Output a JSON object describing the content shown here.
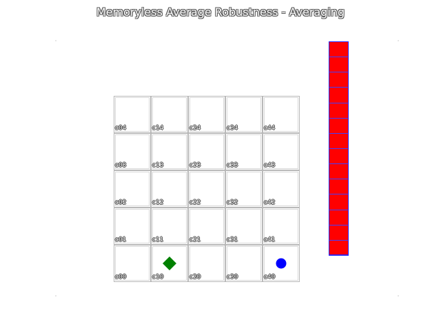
{
  "title": "Memoryless Average Robustness - Averaging",
  "grid": {
    "cols": 5,
    "rows": 5,
    "cells": [
      {
        "label": "c04",
        "col": 0,
        "row": 4
      },
      {
        "label": "c14",
        "col": 1,
        "row": 4
      },
      {
        "label": "c24",
        "col": 2,
        "row": 4
      },
      {
        "label": "c34",
        "col": 3,
        "row": 4
      },
      {
        "label": "c44",
        "col": 4,
        "row": 4
      },
      {
        "label": "c03",
        "col": 0,
        "row": 3
      },
      {
        "label": "c13",
        "col": 1,
        "row": 3
      },
      {
        "label": "c23",
        "col": 2,
        "row": 3
      },
      {
        "label": "c33",
        "col": 3,
        "row": 3
      },
      {
        "label": "c43",
        "col": 4,
        "row": 3
      },
      {
        "label": "c02",
        "col": 0,
        "row": 2
      },
      {
        "label": "c12",
        "col": 1,
        "row": 2
      },
      {
        "label": "c22",
        "col": 2,
        "row": 2
      },
      {
        "label": "c32",
        "col": 3,
        "row": 2
      },
      {
        "label": "c42",
        "col": 4,
        "row": 2
      },
      {
        "label": "c01",
        "col": 0,
        "row": 1
      },
      {
        "label": "c11",
        "col": 1,
        "row": 1
      },
      {
        "label": "c21",
        "col": 2,
        "row": 1
      },
      {
        "label": "c31",
        "col": 3,
        "row": 1
      },
      {
        "label": "c41",
        "col": 4,
        "row": 1
      },
      {
        "label": "c00",
        "col": 0,
        "row": 0
      },
      {
        "label": "c10",
        "col": 1,
        "row": 0
      },
      {
        "label": "c20",
        "col": 2,
        "row": 0
      },
      {
        "label": "c30",
        "col": 3,
        "row": 0
      },
      {
        "label": "c40",
        "col": 4,
        "row": 0
      }
    ]
  },
  "agents": [
    {
      "shape": "diamond",
      "color": "#008000",
      "col": 1,
      "row": 0
    },
    {
      "shape": "circle",
      "color": "#0000ff",
      "col": 4,
      "row": 0
    }
  ],
  "bar": {
    "segments": 14,
    "fill_color": "#ff0000",
    "border_color": "#2222ff"
  }
}
